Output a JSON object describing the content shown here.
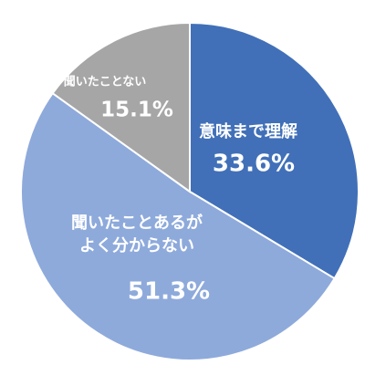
{
  "chart_data": {
    "type": "pie",
    "categories": [
      "意味まで理解",
      "聞いたことあるが\nよく分からない",
      "聞いたことない"
    ],
    "values": [
      33.6,
      51.3,
      15.1
    ],
    "value_labels": [
      "33.6%",
      "51.3%",
      "15.1%"
    ],
    "colors": [
      "#4170b8",
      "#8eaadb",
      "#a6a6a6"
    ]
  }
}
